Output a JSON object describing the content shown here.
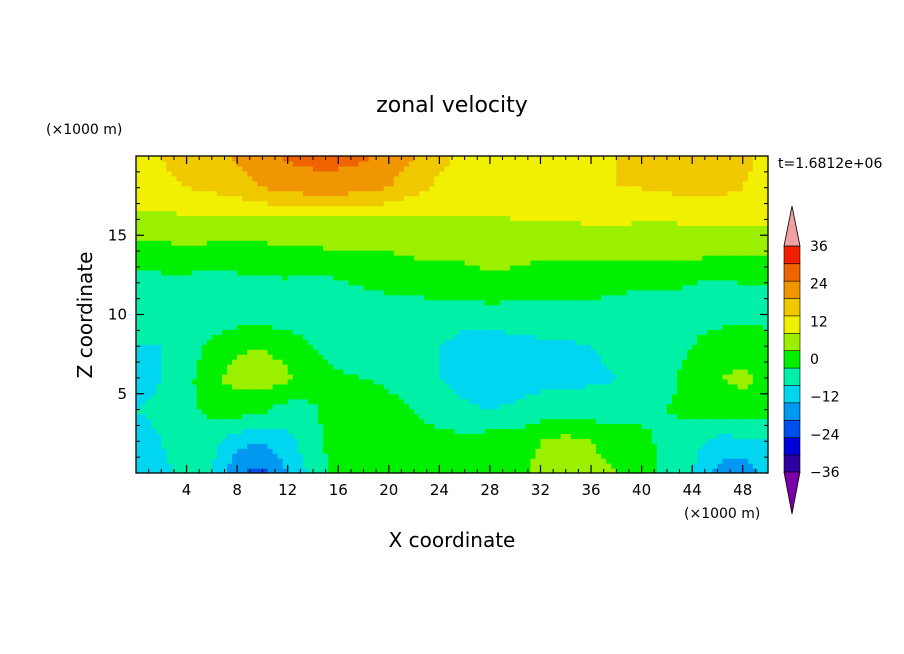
{
  "chart_data": {
    "type": "heatmap",
    "title": "zonal velocity",
    "xlabel": "X coordinate",
    "ylabel": "Z coordinate",
    "x_unit": "(×1000 m)",
    "y_unit": "(×1000 m)",
    "time_label": "t=1.6812e+06",
    "xlim": [
      0,
      50
    ],
    "ylim": [
      0,
      20
    ],
    "x_ticks": [
      4,
      8,
      12,
      16,
      20,
      24,
      28,
      32,
      36,
      40,
      44,
      48
    ],
    "y_ticks": [
      5,
      10,
      15
    ],
    "colorbar": {
      "levels": [
        -42,
        -36,
        -30,
        -24,
        -18,
        -12,
        -6,
        0,
        6,
        12,
        18,
        24,
        30,
        36,
        42
      ],
      "labels": [
        36,
        24,
        12,
        0,
        -12,
        -24,
        -36
      ],
      "colors": [
        "#7a00a8",
        "#2e00a0",
        "#0000d8",
        "#0050f0",
        "#0098f0",
        "#00d6f0",
        "#00f0a8",
        "#00f000",
        "#9bf000",
        "#f0f000",
        "#f0c800",
        "#f09600",
        "#f06400",
        "#f02000",
        "#f0a0a0"
      ]
    },
    "field": {
      "x": [
        0,
        2,
        4,
        6,
        8,
        10,
        12,
        14,
        16,
        18,
        20,
        22,
        24,
        26,
        28,
        30,
        32,
        34,
        36,
        38,
        40,
        42,
        44,
        46,
        48,
        50
      ],
      "z": [
        0,
        2,
        4,
        6,
        8,
        10,
        12,
        14,
        16,
        18,
        20
      ],
      "values": [
        [
          -10,
          -8,
          -3,
          -6,
          -18,
          -20,
          -12,
          -4,
          2,
          4,
          6,
          3,
          4,
          5,
          6,
          4,
          8,
          10,
          8,
          6,
          4,
          -2,
          -6,
          -14,
          -16,
          -10
        ],
        [
          -8,
          -6,
          -2,
          -4,
          -10,
          -12,
          -8,
          -2,
          3,
          4,
          5,
          3,
          2,
          2,
          3,
          3,
          6,
          8,
          6,
          4,
          2,
          -2,
          -4,
          -8,
          -8,
          -6
        ],
        [
          -6,
          -5,
          -2,
          2,
          3,
          1,
          -3,
          -1,
          4,
          6,
          3,
          0,
          -3,
          -5,
          -6,
          -5,
          -3,
          -2,
          -3,
          -4,
          -2,
          0,
          2,
          3,
          4,
          2
        ],
        [
          -8,
          -6,
          -2,
          5,
          8,
          9,
          7,
          3,
          1,
          0,
          -2,
          -4,
          -6,
          -8,
          -10,
          -9,
          -8,
          -8,
          -7,
          -6,
          -4,
          -2,
          3,
          6,
          7,
          5
        ],
        [
          -6,
          -6,
          -4,
          2,
          5,
          6,
          4,
          0,
          -3,
          -5,
          -6,
          -6,
          -6,
          -8,
          -9,
          -8,
          -7,
          -7,
          -6,
          -5,
          -4,
          -3,
          0,
          3,
          4,
          3
        ],
        [
          -4,
          -4,
          -5,
          -5,
          -3,
          -3,
          -4,
          -5,
          -5,
          -5,
          -4,
          -3,
          -3,
          -4,
          -3,
          -3,
          -3,
          -2,
          -2,
          -2,
          -3,
          -3,
          -2,
          -2,
          -2,
          -2
        ],
        [
          -2,
          -2,
          -2,
          -3,
          -2,
          -1,
          -1,
          -2,
          -1,
          1,
          2,
          2,
          3,
          4,
          5,
          4,
          3,
          3,
          2,
          1,
          1,
          1,
          0,
          -1,
          0,
          0
        ],
        [
          4,
          4,
          5,
          4,
          4,
          4,
          5,
          5,
          6,
          6,
          6,
          7,
          7,
          7,
          8,
          8,
          7,
          7,
          7,
          8,
          8,
          8,
          8,
          7,
          7,
          7
        ],
        [
          10,
          10,
          11,
          11,
          11,
          11,
          11,
          11,
          11,
          11,
          11,
          11,
          11,
          11,
          11,
          12,
          12,
          12,
          13,
          13,
          12,
          12,
          13,
          13,
          13,
          13
        ],
        [
          16,
          17,
          18,
          19,
          21,
          24,
          26,
          27,
          27,
          26,
          24,
          20,
          17,
          16,
          16,
          16,
          16,
          17,
          18,
          18,
          18,
          19,
          20,
          20,
          18,
          16
        ],
        [
          17,
          18,
          20,
          22,
          25,
          28,
          31,
          32,
          32,
          31,
          28,
          24,
          19,
          17,
          16,
          16,
          16,
          17,
          17,
          18,
          19,
          20,
          21,
          21,
          19,
          17
        ]
      ]
    }
  }
}
